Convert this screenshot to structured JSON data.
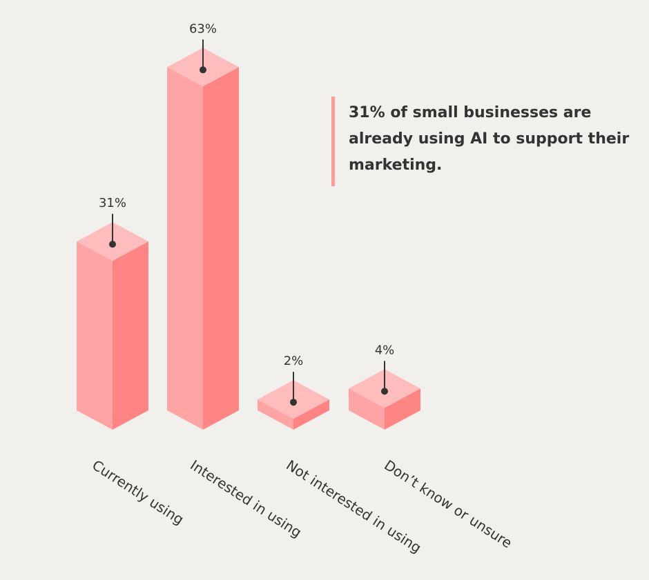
{
  "callout": {
    "text": "31% of small businesses are already using AI to support their marketing."
  },
  "colors": {
    "front": "#ffa4a4",
    "side": "#ff8585",
    "top": "#ffbcbc",
    "label": "#333333",
    "accent_bar": "#ff9a9a"
  },
  "chart_data": {
    "type": "bar",
    "categories": [
      "Currently using",
      "Interested in using",
      "Not interested in using",
      "Don’t know or unsure"
    ],
    "values": [
      31,
      63,
      2,
      4
    ],
    "value_labels": [
      "31%",
      "63%",
      "2%",
      "4%"
    ],
    "title": "",
    "xlabel": "",
    "ylabel": "",
    "ylim": [
      0,
      63
    ],
    "grid": false,
    "legend": "none"
  }
}
